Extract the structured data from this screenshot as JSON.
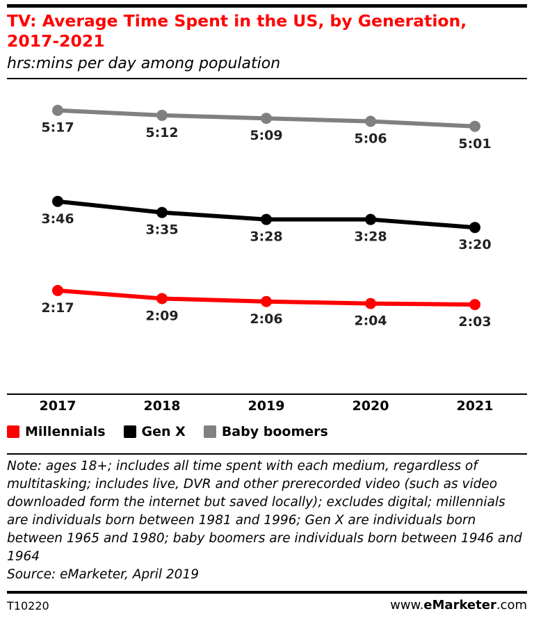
{
  "title": "TV: Average Time Spent in the US, by Generation, 2017-2021",
  "subtitle": "hrs:mins per day among population",
  "chart_data": {
    "type": "line",
    "x": [
      "2017",
      "2018",
      "2019",
      "2020",
      "2021"
    ],
    "series": [
      {
        "name": "Baby boomers",
        "color": "#808080",
        "values": [
          317,
          312,
          309,
          306,
          301
        ],
        "labels": [
          "5:17",
          "5:12",
          "5:09",
          "5:06",
          "5:01"
        ]
      },
      {
        "name": "Gen X",
        "color": "#000000",
        "values": [
          226,
          215,
          208,
          208,
          200
        ],
        "labels": [
          "3:46",
          "3:35",
          "3:28",
          "3:28",
          "3:20"
        ]
      },
      {
        "name": "Millennials",
        "color": "#ff0000",
        "values": [
          137,
          129,
          126,
          124,
          123
        ],
        "labels": [
          "2:17",
          "2:09",
          "2:06",
          "2:04",
          "2:03"
        ]
      }
    ],
    "legend": [
      {
        "name": "Millennials",
        "color": "#ff0000"
      },
      {
        "name": "Gen X",
        "color": "#000000"
      },
      {
        "name": "Baby boomers",
        "color": "#808080"
      }
    ],
    "units": "minutes per day",
    "ylim": [
      80,
      330
    ],
    "grid": false,
    "legend_position": "bottom-left"
  },
  "notes": {
    "note": "Note: ages 18+; includes all time spent with each medium, regardless of multitasking; includes live, DVR and other prerecorded video (such as video downloaded form the internet but saved locally); excludes digital; millennials are individuals born between 1981 and 1996; Gen X are individuals born between 1965 and 1980; baby boomers are individuals born between 1946 and 1964",
    "source": "Source: eMarketer, April 2019"
  },
  "footer": {
    "id": "T10220",
    "brand_prefix": "www.",
    "brand_bold": "eMarketer",
    "brand_suffix": ".com"
  }
}
